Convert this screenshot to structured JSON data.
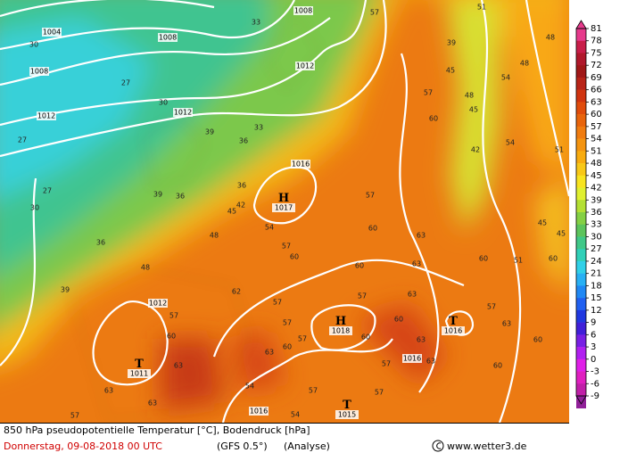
{
  "map": {
    "caption": "850 hPa pseudopotentielle Temperatur [°C], Bodendruck [hPa]",
    "date_line": "Donnerstag, 09-08-2018  00 UTC",
    "model": "(GFS 0.5°)",
    "analysis": "(Analyse)",
    "credit": "www.wetter3.de",
    "isobar_labels": [
      "1004",
      "1008",
      "1008",
      "1008",
      "1012",
      "1012",
      "1012",
      "1016",
      "1012",
      "1016",
      "1016"
    ],
    "highs": [
      {
        "symbol": "H",
        "pressure": "1017"
      },
      {
        "symbol": "H",
        "pressure": "1018"
      }
    ],
    "lows": [
      {
        "symbol": "T",
        "pressure": "1011"
      },
      {
        "symbol": "T",
        "pressure": "1016"
      },
      {
        "symbol": "T",
        "pressure": "1015"
      }
    ],
    "temperature_labels": [
      "30",
      "27",
      "30",
      "27",
      "39",
      "36",
      "33",
      "36",
      "39",
      "36",
      "27",
      "30",
      "36",
      "48",
      "39",
      "42",
      "45",
      "48",
      "54",
      "57",
      "60",
      "57",
      "60",
      "63",
      "60",
      "63",
      "62",
      "57",
      "57",
      "63",
      "57",
      "57",
      "60",
      "63",
      "60",
      "60",
      "63",
      "57",
      "57",
      "54",
      "63",
      "60",
      "57",
      "63",
      "63",
      "57",
      "54",
      "57",
      "33",
      "39",
      "45",
      "48",
      "45",
      "60",
      "57",
      "42",
      "54",
      "54",
      "48",
      "48",
      "51",
      "51",
      "45",
      "45",
      "51",
      "60",
      "60",
      "57",
      "63",
      "60",
      "60",
      "57",
      "63"
    ]
  },
  "colorbar": {
    "labels": [
      81,
      78,
      75,
      72,
      69,
      66,
      63,
      60,
      57,
      54,
      51,
      48,
      45,
      42,
      39,
      36,
      33,
      30,
      27,
      24,
      21,
      18,
      15,
      12,
      9,
      6,
      3,
      0,
      -3,
      -6,
      -9
    ],
    "colors": [
      "#e63a8c",
      "#c81e4a",
      "#b0182c",
      "#a01818",
      "#b82418",
      "#d03410",
      "#e04c0c",
      "#e8640c",
      "#f07c10",
      "#f49410",
      "#f8ac10",
      "#f8c818",
      "#f8e420",
      "#e0f030",
      "#b4e034",
      "#84d044",
      "#5cc45c",
      "#40c888",
      "#30d0b8",
      "#30d0e8",
      "#28b0f4",
      "#2088f4",
      "#2060f0",
      "#2038e0",
      "#4020d8",
      "#7820e4",
      "#b020f0",
      "#e020e8",
      "#e020c0",
      "#c020a8",
      "#902098"
    ]
  }
}
